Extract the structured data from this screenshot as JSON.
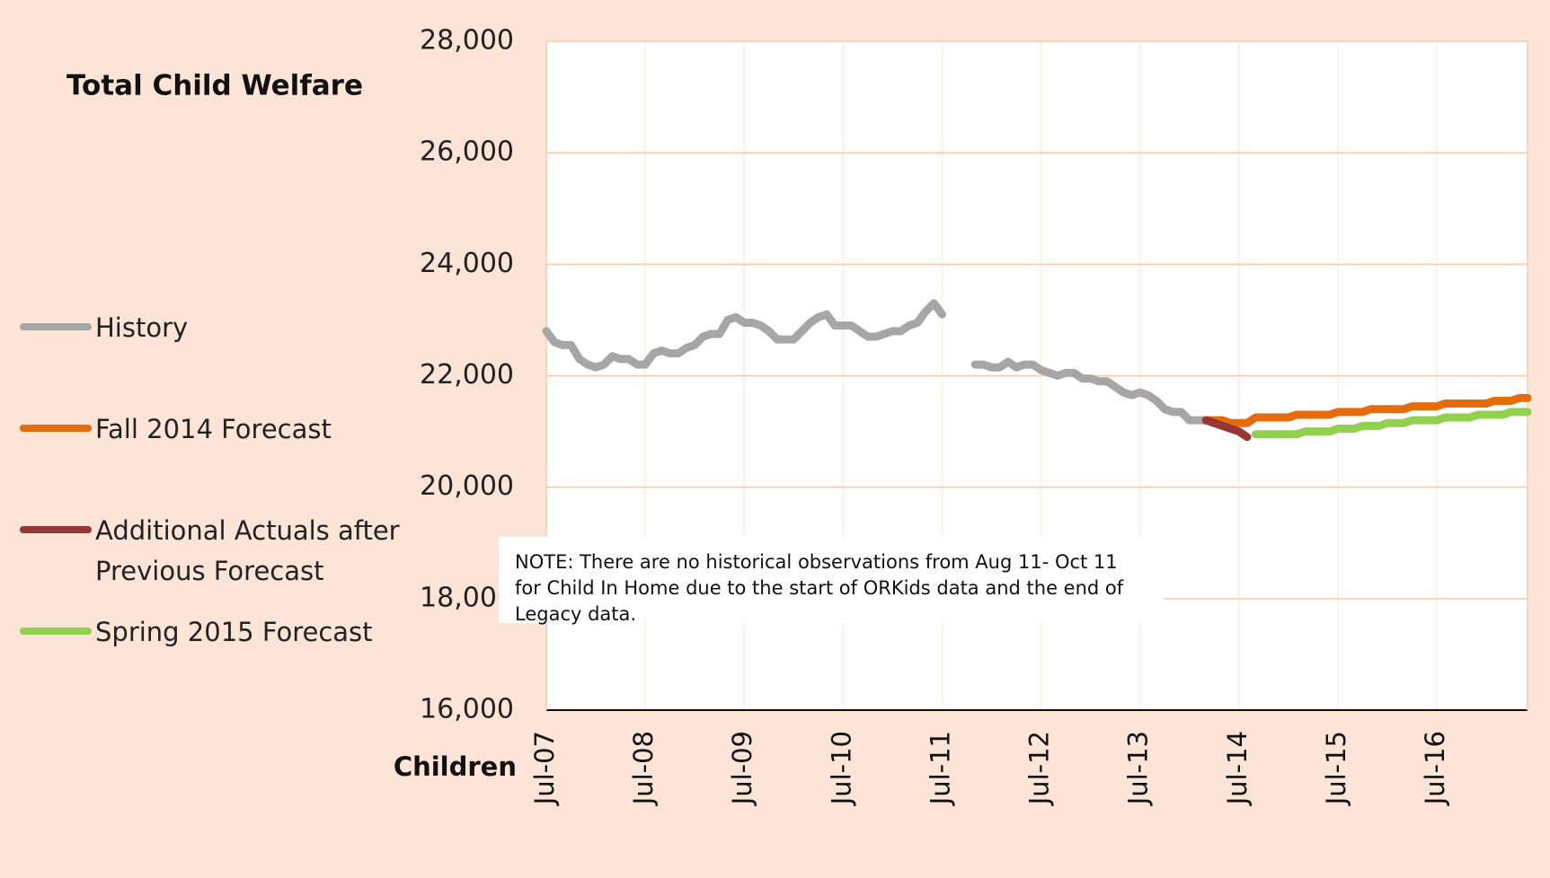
{
  "chart_data": {
    "type": "line",
    "title": "Total Child Welfare",
    "y_label": "Children",
    "note": "NOTE: There are no historical observations from Aug 11- Oct 11 for Child In Home due to the start of ORKids data and the end of Legacy data.",
    "ylim": [
      16000,
      28000
    ],
    "yticks": [
      {
        "value": 16000,
        "label": "16,000"
      },
      {
        "value": 18000,
        "label": "18,000"
      },
      {
        "value": 20000,
        "label": "20,000"
      },
      {
        "value": 22000,
        "label": "22,000"
      },
      {
        "value": 24000,
        "label": "24,000"
      },
      {
        "value": 26000,
        "label": "26,000"
      },
      {
        "value": 28000,
        "label": "28,000"
      }
    ],
    "grid": true,
    "categories": [
      "Jul-07",
      null,
      null,
      null,
      null,
      null,
      null,
      null,
      null,
      null,
      null,
      null,
      "Jul-08",
      null,
      null,
      null,
      null,
      null,
      null,
      null,
      null,
      null,
      null,
      null,
      "Jul-09",
      null,
      null,
      null,
      null,
      null,
      null,
      null,
      null,
      null,
      null,
      null,
      "Jul-10",
      null,
      null,
      null,
      null,
      null,
      null,
      null,
      null,
      null,
      null,
      null,
      "Jul-11",
      null,
      null,
      null,
      null,
      null,
      null,
      null,
      null,
      null,
      null,
      null,
      "Jul-12",
      null,
      null,
      null,
      null,
      null,
      null,
      null,
      null,
      null,
      null,
      null,
      "Jul-13",
      null,
      null,
      null,
      null,
      null,
      null,
      null,
      null,
      null,
      null,
      null,
      "Jul-14",
      null,
      null,
      null,
      null,
      null,
      null,
      null,
      null,
      null,
      null,
      null,
      "Jul-15",
      null,
      null,
      null,
      null,
      null,
      null,
      null,
      null,
      null,
      null,
      null,
      "Jul-16",
      null,
      null,
      null,
      null,
      null,
      null,
      null,
      null,
      null,
      null,
      null
    ],
    "series": [
      {
        "name": "History",
        "color": "#a6a6a6",
        "values": [
          22800,
          22600,
          22550,
          22550,
          22300,
          22200,
          22150,
          22200,
          22350,
          22300,
          22300,
          22200,
          22200,
          22400,
          22450,
          22400,
          22400,
          22500,
          22550,
          22700,
          22750,
          22750,
          23000,
          23050,
          22950,
          22950,
          22900,
          22800,
          22650,
          22650,
          22650,
          22800,
          22950,
          23050,
          23100,
          22900,
          22900,
          22900,
          22800,
          22700,
          22700,
          22750,
          22800,
          22800,
          22900,
          22950,
          23150,
          23300,
          23100,
          null,
          null,
          null,
          22200,
          22200,
          22150,
          22150,
          22250,
          22150,
          22200,
          22200,
          22100,
          22050,
          22000,
          22050,
          22050,
          21950,
          21950,
          21900,
          21900,
          21800,
          21700,
          21650,
          21700,
          21650,
          21550,
          21400,
          21350,
          21350,
          21200,
          21200,
          21200,
          null,
          null,
          null,
          null,
          null,
          null,
          null,
          null,
          null,
          null,
          null,
          null,
          null,
          null,
          null,
          null,
          null,
          null,
          null,
          null,
          null,
          null,
          null,
          null,
          null,
          null,
          null,
          null,
          null,
          null,
          null,
          null,
          null,
          null,
          null,
          null,
          null,
          null,
          null
        ]
      },
      {
        "name": "Fall 2014 Forecast",
        "color": "#e46c0a",
        "values": [
          null,
          null,
          null,
          null,
          null,
          null,
          null,
          null,
          null,
          null,
          null,
          null,
          null,
          null,
          null,
          null,
          null,
          null,
          null,
          null,
          null,
          null,
          null,
          null,
          null,
          null,
          null,
          null,
          null,
          null,
          null,
          null,
          null,
          null,
          null,
          null,
          null,
          null,
          null,
          null,
          null,
          null,
          null,
          null,
          null,
          null,
          null,
          null,
          null,
          null,
          null,
          null,
          null,
          null,
          null,
          null,
          null,
          null,
          null,
          null,
          null,
          null,
          null,
          null,
          null,
          null,
          null,
          null,
          null,
          null,
          null,
          null,
          null,
          null,
          null,
          null,
          null,
          null,
          null,
          null,
          21200,
          21200,
          21200,
          21150,
          21150,
          21150,
          21250,
          21250,
          21250,
          21250,
          21250,
          21300,
          21300,
          21300,
          21300,
          21300,
          21350,
          21350,
          21350,
          21350,
          21400,
          21400,
          21400,
          21400,
          21400,
          21450,
          21450,
          21450,
          21450,
          21500,
          21500,
          21500,
          21500,
          21500,
          21500,
          21550,
          21550,
          21550,
          21600,
          21600
        ]
      },
      {
        "name": "Additional Actuals after Previous Forecast",
        "color": "#953735",
        "values": [
          null,
          null,
          null,
          null,
          null,
          null,
          null,
          null,
          null,
          null,
          null,
          null,
          null,
          null,
          null,
          null,
          null,
          null,
          null,
          null,
          null,
          null,
          null,
          null,
          null,
          null,
          null,
          null,
          null,
          null,
          null,
          null,
          null,
          null,
          null,
          null,
          null,
          null,
          null,
          null,
          null,
          null,
          null,
          null,
          null,
          null,
          null,
          null,
          null,
          null,
          null,
          null,
          null,
          null,
          null,
          null,
          null,
          null,
          null,
          null,
          null,
          null,
          null,
          null,
          null,
          null,
          null,
          null,
          null,
          null,
          null,
          null,
          null,
          null,
          null,
          null,
          null,
          null,
          null,
          null,
          21200,
          21150,
          21100,
          21050,
          21000,
          20900,
          null,
          null,
          null,
          null,
          null,
          null,
          null,
          null,
          null,
          null,
          null,
          null,
          null,
          null,
          null,
          null,
          null,
          null,
          null,
          null,
          null,
          null,
          null,
          null,
          null,
          null,
          null,
          null,
          null,
          null,
          null,
          null,
          null,
          null
        ]
      },
      {
        "name": "Spring 2015 Forecast",
        "color": "#92d050",
        "values": [
          null,
          null,
          null,
          null,
          null,
          null,
          null,
          null,
          null,
          null,
          null,
          null,
          null,
          null,
          null,
          null,
          null,
          null,
          null,
          null,
          null,
          null,
          null,
          null,
          null,
          null,
          null,
          null,
          null,
          null,
          null,
          null,
          null,
          null,
          null,
          null,
          null,
          null,
          null,
          null,
          null,
          null,
          null,
          null,
          null,
          null,
          null,
          null,
          null,
          null,
          null,
          null,
          null,
          null,
          null,
          null,
          null,
          null,
          null,
          null,
          null,
          null,
          null,
          null,
          null,
          null,
          null,
          null,
          null,
          null,
          null,
          null,
          null,
          null,
          null,
          null,
          null,
          null,
          null,
          null,
          null,
          null,
          null,
          null,
          null,
          null,
          20950,
          20950,
          20950,
          20950,
          20950,
          20950,
          21000,
          21000,
          21000,
          21000,
          21050,
          21050,
          21050,
          21100,
          21100,
          21100,
          21150,
          21150,
          21150,
          21200,
          21200,
          21200,
          21200,
          21250,
          21250,
          21250,
          21250,
          21300,
          21300,
          21300,
          21300,
          21350,
          21350,
          21350
        ]
      }
    ]
  }
}
